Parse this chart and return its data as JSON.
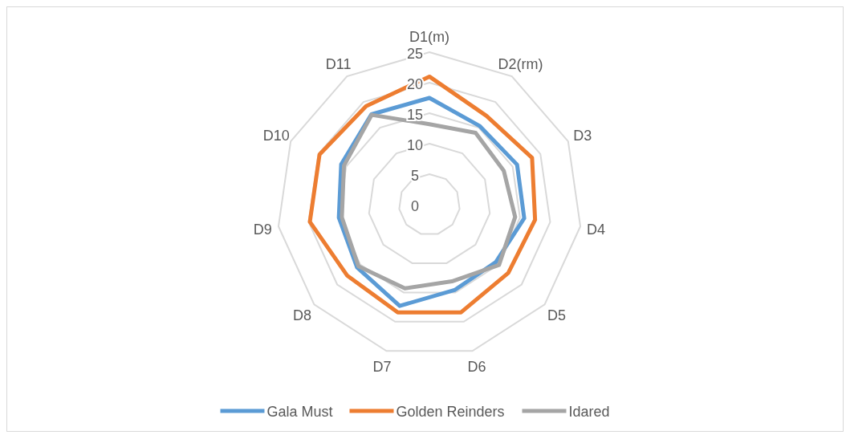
{
  "chart_data": {
    "type": "radar",
    "categories": [
      "D1(m)",
      "D2(rm)",
      "D3",
      "D4",
      "D5",
      "D6",
      "D7",
      "D8",
      "D9",
      "D10",
      "D11"
    ],
    "ylim": [
      0,
      25
    ],
    "yticks": [
      0,
      5,
      10,
      15,
      20,
      25
    ],
    "grid": true,
    "legend": "bottom",
    "series": [
      {
        "name": "Gala Must",
        "color": "#5b9bd5",
        "values": [
          17.5,
          15.3,
          15.8,
          15.7,
          14.4,
          14.6,
          17.3,
          15.7,
          15.0,
          15.9,
          17.6
        ]
      },
      {
        "name": "Golden Reinders",
        "color": "#ed7d31",
        "values": [
          21.0,
          17.3,
          18.5,
          17.5,
          17.1,
          18.4,
          18.4,
          17.8,
          19.8,
          19.8,
          19.2
        ]
      },
      {
        "name": "Idared",
        "color": "#a5a5a5",
        "values": [
          13.2,
          14.0,
          13.4,
          14.2,
          15.1,
          13.1,
          14.3,
          15.4,
          14.5,
          15.4,
          17.5
        ]
      }
    ]
  }
}
